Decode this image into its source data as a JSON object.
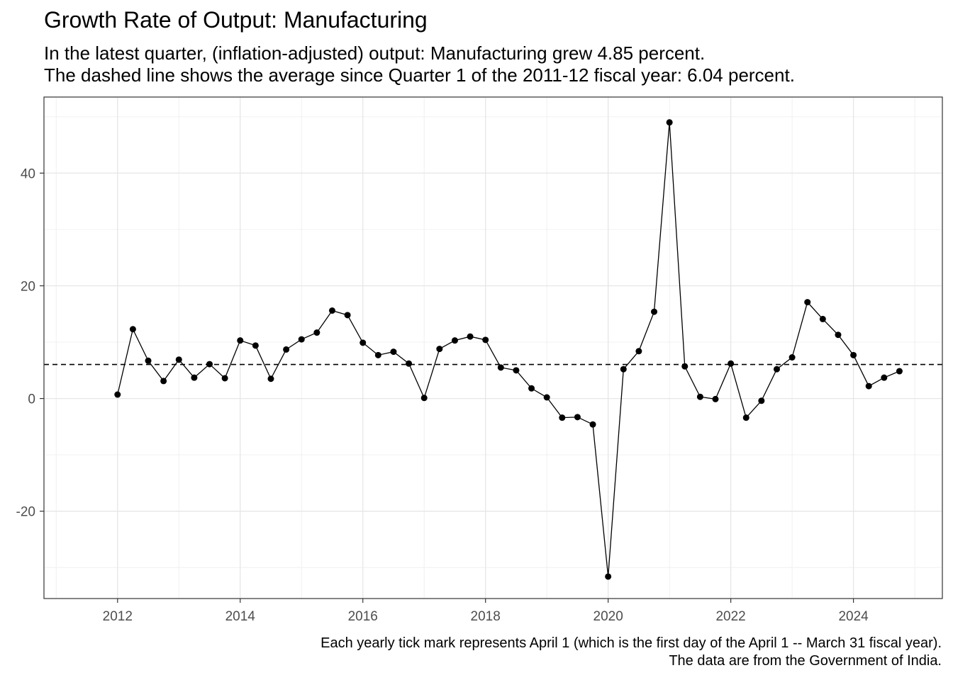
{
  "title": "Growth Rate of Output: Manufacturing",
  "subtitle_line1": "In the latest quarter, (inflation-adjusted) output: Manufacturing grew 4.85 percent.",
  "subtitle_line2": "The dashed line shows the average since Quarter 1 of the 2011-12 fiscal year: 6.04 percent.",
  "caption_line1": "Each yearly tick mark represents April 1 (which is the first day of the April 1 -- March 31 fiscal year).",
  "caption_line2": "The data are from the Government of India.",
  "chart_data": {
    "type": "line",
    "title": "Growth Rate of Output: Manufacturing",
    "xlabel": "",
    "ylabel": "",
    "x_ticks": [
      "2012",
      "2014",
      "2016",
      "2018",
      "2020",
      "2022",
      "2024"
    ],
    "y_ticks": [
      "-20",
      "0",
      "20",
      "40"
    ],
    "xlim": [
      2010.8,
      2025.45
    ],
    "ylim": [
      -35.5,
      53.5
    ],
    "grid": true,
    "reference_line": {
      "value": 6.04,
      "style": "dashed"
    },
    "series": [
      {
        "x": [
          2012.0,
          2012.25,
          2012.5,
          2012.75,
          2013.0,
          2013.25,
          2013.5,
          2013.75,
          2014.0,
          2014.25,
          2014.5,
          2014.75,
          2015.0,
          2015.25,
          2015.5,
          2015.75,
          2016.0,
          2016.25,
          2016.5,
          2016.75,
          2017.0,
          2017.25,
          2017.5,
          2017.75,
          2018.0,
          2018.25,
          2018.5,
          2018.75,
          2019.0,
          2019.25,
          2019.5,
          2019.75,
          2020.0,
          2020.25,
          2020.5,
          2020.75,
          2021.0,
          2021.25,
          2021.5,
          2021.75,
          2022.0,
          2022.25,
          2022.5,
          2022.75,
          2023.0,
          2023.25,
          2023.5,
          2023.75,
          2024.0,
          2024.25,
          2024.5,
          2024.75
        ],
        "values": [
          0.7,
          12.3,
          6.7,
          3.1,
          6.9,
          3.7,
          6.1,
          3.6,
          10.3,
          9.4,
          3.5,
          8.7,
          10.5,
          11.7,
          15.6,
          14.8,
          9.9,
          7.7,
          8.3,
          6.2,
          0.1,
          8.8,
          10.3,
          11.0,
          10.4,
          5.5,
          5.0,
          1.8,
          0.2,
          -3.4,
          -3.3,
          -4.6,
          -31.6,
          5.2,
          8.4,
          15.4,
          49.0,
          5.7,
          0.3,
          -0.1,
          6.2,
          -3.4,
          -0.4,
          5.2,
          7.3,
          17.1,
          14.1,
          11.3,
          7.7,
          2.2,
          3.7,
          4.85
        ]
      }
    ]
  }
}
